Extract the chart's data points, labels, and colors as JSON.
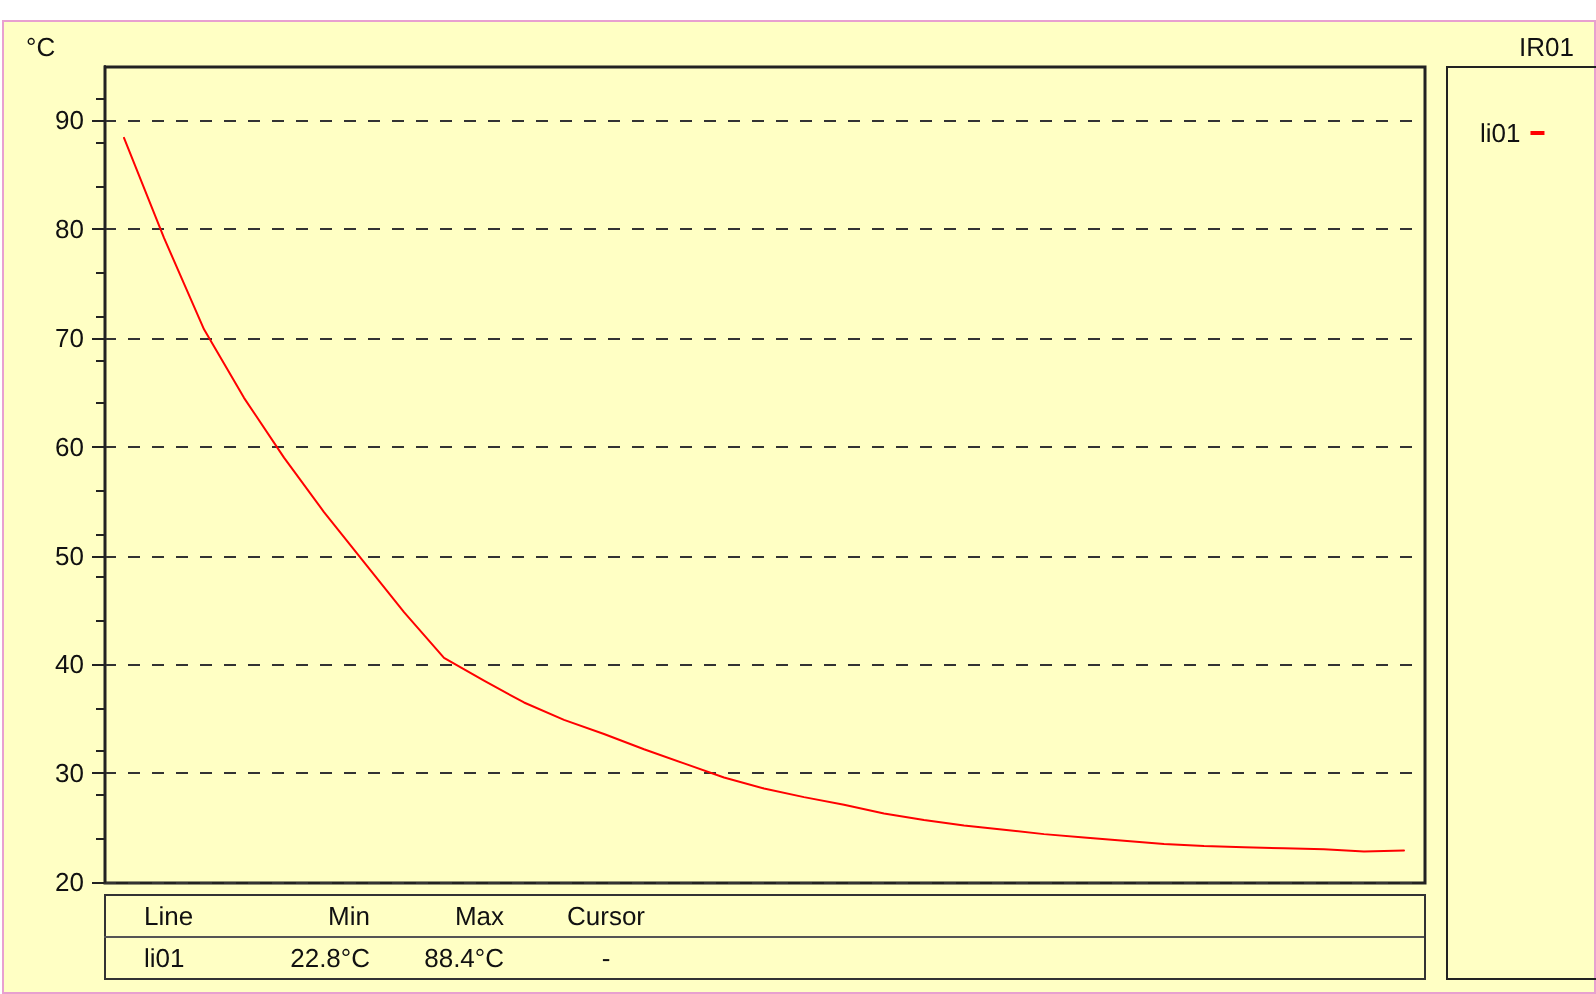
{
  "chart_data": {
    "type": "line",
    "title": "IR01",
    "ylabel": "°C",
    "categories": [
      null,
      null,
      null,
      null,
      null,
      null,
      null,
      null,
      null,
      null,
      null,
      null,
      null,
      null,
      null,
      null,
      null,
      null,
      null,
      null,
      null,
      null,
      null,
      null,
      null,
      null,
      null,
      null,
      null,
      null,
      null,
      null,
      null
    ],
    "series": [
      {
        "name": "li01",
        "color": "#ff0000",
        "values": [
          88.4,
          79.2,
          70.8,
          64.5,
          59.0,
          54.0,
          49.4,
          44.8,
          40.6,
          38.5,
          36.5,
          34.9,
          33.6,
          32.2,
          30.9,
          29.6,
          28.6,
          27.8,
          27.1,
          26.3,
          25.7,
          25.2,
          24.8,
          24.4,
          24.1,
          23.8,
          23.5,
          23.3,
          23.2,
          23.1,
          23.0,
          22.8,
          22.9
        ]
      }
    ],
    "ylim": [
      20,
      95
    ],
    "yticks": [
      20,
      30,
      40,
      50,
      60,
      70,
      80,
      90
    ],
    "grid": "y",
    "legend": "right",
    "marker": "none",
    "line_style": "solid",
    "annotations": [
      "Line",
      "Min",
      "Max",
      "Cursor",
      "22.8°C",
      "88.4°C",
      "-"
    ]
  }
}
